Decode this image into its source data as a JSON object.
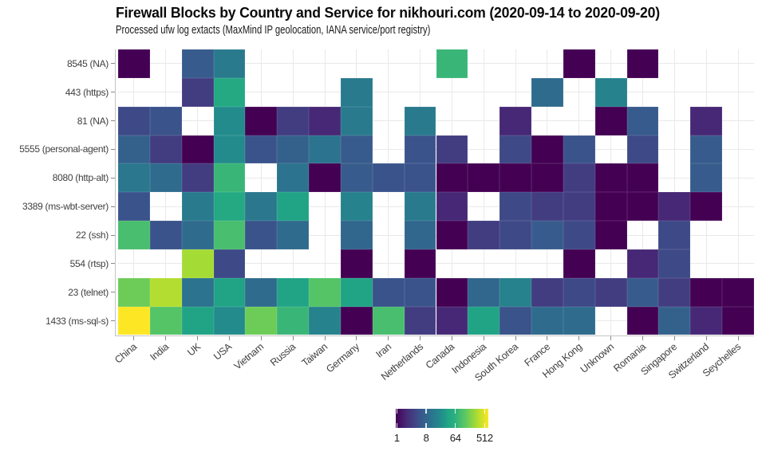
{
  "header": {
    "title": "Firewall Blocks by Country and Service for nikhouri.com (2020-09-14 to 2020-09-20)",
    "subtitle": "Processed ufw log extacts (MaxMind IP geolocation, IANA service/port registry)"
  },
  "chart_data": {
    "type": "heatmap",
    "title": "Firewall Blocks by Country and Service for nikhouri.com (2020-09-14 to 2020-09-20)",
    "subtitle": "Processed ufw log extacts (MaxMind IP geolocation, IANA service/port registry)",
    "x_categories": [
      "China",
      "India",
      "UK",
      "USA",
      "Vietnam",
      "Russia",
      "Taiwan",
      "Germany",
      "Iran",
      "Netherlands",
      "Canada",
      "Indonesia",
      "South Korea",
      "France",
      "Hong Kong",
      "Unknown",
      "Romania",
      "Singapore",
      "Switzerland",
      "Seychelles"
    ],
    "y_categories": [
      "8545 (NA)",
      "443 (https)",
      "81 (NA)",
      "5555 (personal-agent)",
      "8080 (http-alt)",
      "3389 (ms-wbt-server)",
      "22 (ssh)",
      "554 (rtsp)",
      "23 (telnet)",
      "1433 (ms-sql-s)"
    ],
    "values": [
      [
        1,
        null,
        6,
        13,
        null,
        null,
        null,
        null,
        null,
        null,
        64,
        null,
        null,
        null,
        1,
        null,
        1,
        null,
        null,
        null
      ],
      [
        null,
        null,
        3,
        40,
        null,
        null,
        null,
        13,
        null,
        null,
        null,
        null,
        null,
        9,
        null,
        16,
        null,
        null,
        null,
        null
      ],
      [
        4,
        5,
        null,
        20,
        1,
        3,
        2,
        13,
        null,
        13,
        null,
        null,
        2,
        null,
        null,
        1,
        6,
        null,
        2,
        null
      ],
      [
        7,
        3,
        1,
        20,
        5,
        7,
        11,
        6,
        null,
        5,
        3,
        null,
        4,
        1,
        5,
        null,
        4,
        null,
        6,
        null
      ],
      [
        12,
        9,
        3,
        64,
        null,
        11,
        1,
        6,
        5,
        5,
        1,
        1,
        1,
        1,
        3,
        1,
        1,
        null,
        6,
        null
      ],
      [
        5,
        null,
        13,
        40,
        12,
        32,
        null,
        16,
        null,
        13,
        2,
        null,
        4,
        3,
        3,
        1,
        1,
        2,
        1,
        null
      ],
      [
        80,
        5,
        9,
        80,
        5,
        9,
        null,
        8,
        null,
        8,
        1,
        3,
        4,
        6,
        4,
        1,
        null,
        4,
        null,
        null
      ],
      [
        null,
        null,
        224,
        4,
        null,
        null,
        null,
        1,
        null,
        1,
        null,
        null,
        null,
        null,
        1,
        null,
        2,
        4,
        null,
        null
      ],
      [
        128,
        256,
        11,
        32,
        9,
        32,
        96,
        32,
        5,
        5,
        1,
        8,
        16,
        3,
        4,
        3,
        6,
        3,
        1,
        1
      ],
      [
        512,
        96,
        32,
        20,
        128,
        64,
        16,
        1,
        80,
        3,
        2,
        32,
        5,
        9,
        9,
        null,
        1,
        7,
        2,
        1
      ]
    ],
    "missing_color": "#ffffff",
    "scale": {
      "type": "log",
      "domain": [
        1,
        512
      ],
      "legend_ticks": [
        1,
        8,
        64,
        512
      ]
    },
    "colormap": {
      "name": "viridis",
      "stops": [
        [
          0,
          "#440154"
        ],
        [
          0.125,
          "#472d7a"
        ],
        [
          0.25,
          "#3b518b"
        ],
        [
          0.375,
          "#2c718e"
        ],
        [
          0.5,
          "#21908c"
        ],
        [
          0.5625,
          "#21a585"
        ],
        [
          0.625,
          "#27ad81"
        ],
        [
          0.75,
          "#5cc863"
        ],
        [
          0.875,
          "#aadc32"
        ],
        [
          1,
          "#fde725"
        ]
      ]
    },
    "legend_position": "bottom-center",
    "grid": true
  },
  "legend": {
    "tick_labels": [
      "1",
      "8",
      "64",
      "512"
    ]
  }
}
